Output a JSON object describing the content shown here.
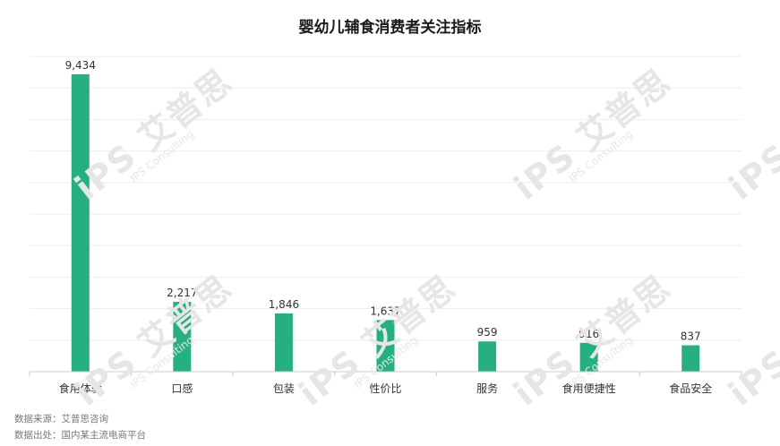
{
  "chart_data": {
    "type": "bar",
    "title": "婴幼儿辅食消费者关注指标",
    "categories": [
      "食用体验",
      "口感",
      "包装",
      "性价比",
      "服务",
      "食用便捷性",
      "食品安全"
    ],
    "values": [
      9434,
      2217,
      1846,
      1637,
      959,
      916,
      837
    ],
    "value_labels": [
      "9,434",
      "2,217",
      "1,846",
      "1,637",
      "959",
      "916",
      "837"
    ],
    "ylim": [
      0,
      10000
    ],
    "grid": true,
    "xlabel": "",
    "ylabel": ""
  },
  "colors": {
    "bar": "#26b07f",
    "grid": "#eeeeee",
    "axis": "#cccccc"
  },
  "watermark": {
    "brand": "iPS 艾普思",
    "sub": "IPS Consulting"
  },
  "footer": {
    "source_line": "数据来源：艾普思咨询",
    "origin_line": "数据出处：国内某主流电商平台"
  }
}
